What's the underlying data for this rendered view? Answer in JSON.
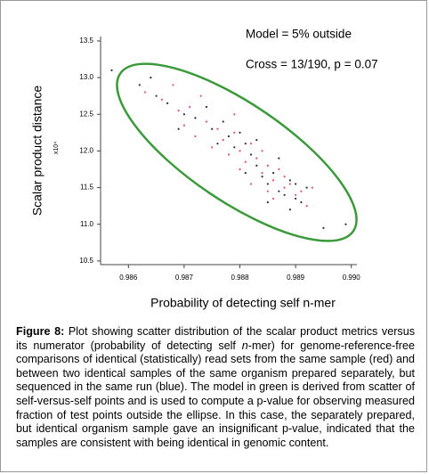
{
  "chart_data": {
    "type": "scatter",
    "annotations": [
      "Model = 5% outside",
      "Cross = 13/190, p = 0.07"
    ],
    "xlabel": "Probability of detecting self n-mer",
    "ylabel": "Scalar product distance",
    "ylabel_scale": "x10⁴",
    "xlim": [
      0.9855,
      0.9901
    ],
    "ylim": [
      10.45,
      13.56
    ],
    "xticks": [
      0.986,
      0.987,
      0.988,
      0.989,
      {
        "value": 0.99,
        "label": "0.990"
      }
    ],
    "yticks": [
      13.5,
      {
        "value": 13,
        "label": "13.0"
      },
      12.5,
      {
        "value": 12,
        "label": "12.0"
      },
      11.5,
      {
        "value": 11,
        "label": "11.0"
      },
      10.5
    ],
    "series": [
      {
        "color": "#e0506e",
        "x": [
          0.9863,
          0.9866,
          0.9869,
          0.9871,
          0.9874,
          0.9876,
          0.9877,
          0.9879,
          0.988,
          0.9881,
          0.9882,
          0.9883,
          0.9884,
          0.9885,
          0.9886,
          0.9887,
          0.9888,
          0.9889,
          0.989,
          0.9891,
          0.9868,
          0.9873,
          0.9878,
          0.9882,
          0.9886,
          0.9892,
          0.987,
          0.9875,
          0.9884,
          0.9888,
          0.9879,
          0.9885,
          0.9893,
          0.9872,
          0.988
        ],
        "values": [
          12.8,
          12.7,
          12.55,
          12.6,
          12.4,
          12.3,
          12.15,
          12.25,
          12.0,
          11.85,
          12.1,
          11.9,
          11.7,
          11.8,
          11.6,
          11.75,
          11.5,
          11.55,
          11.4,
          11.45,
          12.9,
          12.75,
          11.95,
          11.55,
          11.35,
          11.25,
          12.35,
          12.05,
          12.0,
          11.65,
          12.5,
          11.45,
          11.5,
          12.2,
          11.75
        ]
      },
      {
        "color": "#2a2a4a",
        "x": [
          0.9862,
          0.9865,
          0.9867,
          0.987,
          0.9872,
          0.9875,
          0.9877,
          0.9878,
          0.9879,
          0.988,
          0.9881,
          0.9882,
          0.9883,
          0.9884,
          0.9885,
          0.9886,
          0.9887,
          0.9888,
          0.9889,
          0.989,
          0.9891,
          0.9892,
          0.9876,
          0.9881,
          0.9874,
          0.9883,
          0.9887,
          0.9889,
          0.9869,
          0.9864,
          0.9885,
          0.989,
          0.9857,
          0.9895,
          0.9899
        ],
        "values": [
          12.9,
          12.75,
          12.65,
          12.5,
          12.45,
          12.3,
          12.4,
          12.2,
          12.05,
          12.25,
          12.1,
          11.95,
          11.8,
          11.65,
          11.55,
          11.7,
          11.45,
          11.4,
          11.6,
          11.35,
          11.3,
          11.5,
          12.1,
          11.7,
          12.6,
          12.15,
          11.9,
          11.2,
          12.3,
          13.0,
          11.3,
          11.55,
          13.1,
          10.95,
          11.0
        ]
      }
    ]
  },
  "caption": {
    "label": "Figure 8:",
    "parts": [
      "Plot showing scatter distribution of the scalar product metrics versus its numerator (probability of detecting self ",
      "n",
      "-mer) for genome-reference-free comparisons of identical (statistically) read sets from the same sample (red) and between two identical samples of the same organism prepared separately, but sequenced in the same run (blue). The model in green is derived from scatter of self-versus-self points and is used to compute a p-value for observing measured fraction of test points outside the ellipse. In this case, the separately prepared, but identical organism sample gave an insignificant p-value, indicated that the samples are consistent with being identical in genomic content."
    ]
  }
}
